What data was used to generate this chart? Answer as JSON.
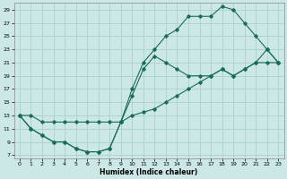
{
  "xlabel": "Humidex (Indice chaleur)",
  "bg_color": "#cce8e6",
  "grid_color": "#aacfcc",
  "line_color": "#1a6b5a",
  "xlim": [
    -0.5,
    23.5
  ],
  "ylim": [
    6.5,
    30
  ],
  "xticks": [
    0,
    1,
    2,
    3,
    4,
    5,
    6,
    7,
    8,
    9,
    10,
    11,
    12,
    13,
    14,
    15,
    16,
    17,
    18,
    19,
    20,
    21,
    22,
    23
  ],
  "yticks": [
    7,
    9,
    11,
    13,
    15,
    17,
    19,
    21,
    23,
    25,
    27,
    29
  ],
  "line1_x": [
    0,
    1,
    2,
    3,
    4,
    5,
    6,
    7,
    8,
    9,
    10,
    11,
    12,
    13,
    14,
    15,
    16,
    17,
    18,
    19,
    20,
    21,
    22,
    23
  ],
  "line1_y": [
    13,
    11,
    10,
    9,
    9,
    8,
    7.5,
    7.5,
    8,
    12,
    16,
    20,
    22,
    21,
    20,
    19,
    19,
    19,
    20,
    19,
    20,
    21,
    23,
    21
  ],
  "line2_x": [
    0,
    1,
    2,
    3,
    4,
    5,
    6,
    7,
    8,
    9,
    10,
    11,
    12,
    13,
    14,
    15,
    16,
    17,
    18,
    19,
    20,
    21,
    22,
    23
  ],
  "line2_y": [
    13,
    11,
    10,
    9,
    9,
    8,
    7.5,
    7.5,
    8,
    12,
    17,
    21,
    23,
    25,
    26,
    28,
    28,
    28,
    29.5,
    29,
    27,
    25,
    23,
    21
  ],
  "line3_x": [
    0,
    1,
    2,
    3,
    4,
    5,
    6,
    7,
    8,
    9,
    10,
    11,
    12,
    13,
    14,
    15,
    16,
    17,
    18,
    19,
    20,
    21,
    22,
    23
  ],
  "line3_y": [
    13,
    13,
    12,
    12,
    12,
    12,
    12,
    12,
    12,
    12,
    13,
    13.5,
    14,
    15,
    16,
    17,
    18,
    19,
    20,
    19,
    20,
    21,
    21,
    21
  ]
}
